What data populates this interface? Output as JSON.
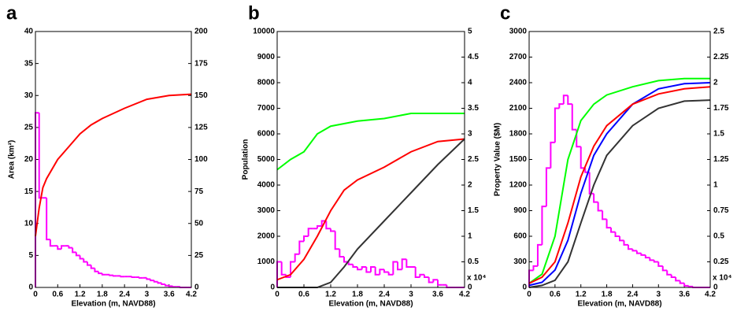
{
  "chart_data": [
    {
      "type": "line",
      "label": "a",
      "xlabel": "Elevation (m, NAVD88)",
      "ylabel": "Area (km²)",
      "xlim": [
        0,
        4.2
      ],
      "xticks": [
        0,
        0.6,
        1.2,
        1.8,
        2.4,
        3,
        3.6,
        4.2
      ],
      "ylim": [
        0,
        40
      ],
      "yticks": [
        0,
        5,
        10,
        15,
        20,
        25,
        30,
        35,
        40
      ],
      "y2lim": [
        0,
        200
      ],
      "y2ticks": [
        0,
        25,
        50,
        75,
        100,
        125,
        150,
        175,
        200
      ],
      "series": [
        {
          "color": "#ff00ff",
          "bins": [
            0,
            0.1,
            0.2,
            0.3,
            0.4,
            0.5,
            0.6,
            0.7,
            0.8,
            0.9,
            1,
            1.1,
            1.2,
            1.3,
            1.4,
            1.5,
            1.6,
            1.7,
            1.8,
            1.9,
            2,
            2.1,
            2.2,
            2.3,
            2.4,
            2.5,
            2.6,
            2.7,
            2.8,
            2.9,
            3,
            3.1,
            3.2,
            3.3,
            3.4,
            3.5,
            3.6,
            3.7,
            3.8,
            3.9,
            4,
            4.1,
            4.2
          ],
          "values": [
            27.3,
            14,
            14,
            7.5,
            6.5,
            6.5,
            6,
            6.5,
            6.5,
            6.2,
            5.5,
            5,
            4.5,
            4,
            3.5,
            3,
            2.5,
            2.2,
            2,
            2,
            1.9,
            1.8,
            1.8,
            1.7,
            1.7,
            1.7,
            1.6,
            1.6,
            1.5,
            1.5,
            1.3,
            1.1,
            0.9,
            0.7,
            0.5,
            0.3,
            0.2,
            0.1,
            0.1,
            0,
            0,
            0
          ]
        },
        {
          "color": "#ff0000",
          "axis": "y2",
          "x": [
            0,
            0.1,
            0.2,
            0.3,
            0.6,
            0.9,
            1.2,
            1.5,
            1.8,
            2.4,
            3,
            3.6,
            4.2
          ],
          "values": [
            40,
            62,
            78,
            85,
            100,
            110,
            120,
            127,
            132,
            140,
            147,
            150,
            151
          ]
        }
      ]
    },
    {
      "type": "line",
      "label": "b",
      "xlabel": "Elevation (m, NAVD88)",
      "ylabel": "Population",
      "y2_multiplier": "x 10⁴",
      "xlim": [
        0,
        4.2
      ],
      "xticks": [
        0,
        0.6,
        1.2,
        1.8,
        2.4,
        3,
        3.6,
        4.2
      ],
      "ylim": [
        0,
        10000
      ],
      "yticks": [
        0,
        1000,
        2000,
        3000,
        4000,
        5000,
        6000,
        7000,
        8000,
        9000,
        10000
      ],
      "y2lim": [
        0,
        5
      ],
      "y2ticks": [
        0,
        0.5,
        1,
        1.5,
        2,
        2.5,
        3,
        3.5,
        4,
        4.5,
        5
      ],
      "series": [
        {
          "color": "#ff00ff",
          "bins": [
            0,
            0.1,
            0.2,
            0.3,
            0.4,
            0.5,
            0.6,
            0.7,
            0.8,
            0.9,
            1,
            1.1,
            1.2,
            1.3,
            1.4,
            1.5,
            1.6,
            1.7,
            1.8,
            1.9,
            2,
            2.1,
            2.2,
            2.3,
            2.4,
            2.5,
            2.6,
            2.7,
            2.8,
            2.9,
            3,
            3.1,
            3.2,
            3.3,
            3.4,
            3.5,
            3.6,
            3.7,
            3.8,
            3.9,
            4,
            4.1,
            4.2
          ],
          "values": [
            1000,
            500,
            400,
            1000,
            1300,
            1800,
            2000,
            2300,
            2300,
            2400,
            2600,
            2300,
            2200,
            1500,
            1200,
            1000,
            900,
            800,
            700,
            800,
            600,
            800,
            500,
            700,
            600,
            500,
            1000,
            700,
            1100,
            800,
            800,
            400,
            500,
            400,
            200,
            300,
            100,
            100,
            0,
            0,
            0,
            0
          ]
        },
        {
          "color": "#00ff00",
          "axis": "y2",
          "x": [
            0,
            0.3,
            0.6,
            0.9,
            1.2,
            1.8,
            2.4,
            3,
            4.2
          ],
          "values": [
            2.3,
            2.5,
            2.65,
            3,
            3.15,
            3.25,
            3.3,
            3.4,
            3.4
          ]
        },
        {
          "color": "#ff0000",
          "axis": "y2",
          "x": [
            0,
            0.3,
            0.6,
            0.9,
            1.2,
            1.5,
            1.8,
            2.4,
            3,
            3.6,
            4.2
          ],
          "values": [
            0.15,
            0.25,
            0.55,
            1,
            1.5,
            1.9,
            2.1,
            2.35,
            2.65,
            2.85,
            2.9
          ]
        },
        {
          "color": "#333333",
          "axis": "y2",
          "x": [
            0,
            0.9,
            1.2,
            1.5,
            1.8,
            2.4,
            3,
            3.6,
            4.2
          ],
          "values": [
            0,
            0,
            0.1,
            0.4,
            0.75,
            1.3,
            1.85,
            2.4,
            2.9
          ]
        }
      ]
    },
    {
      "type": "line",
      "label": "c",
      "xlabel": "Elevation (m, NAVD88)",
      "ylabel": "Property Value ($M)",
      "y2_multiplier": "x 10⁴",
      "xlim": [
        0,
        4.2
      ],
      "xticks": [
        0,
        0.6,
        1.2,
        1.8,
        2.4,
        3,
        3.6,
        4.2
      ],
      "ylim": [
        0,
        3000
      ],
      "yticks": [
        0,
        300,
        600,
        900,
        1200,
        1500,
        1800,
        2100,
        2400,
        2700,
        3000
      ],
      "y2lim": [
        0,
        2.5
      ],
      "y2ticks": [
        0,
        0.25,
        0.5,
        0.75,
        1,
        1.25,
        1.5,
        1.75,
        2,
        2.25,
        2.5
      ],
      "series": [
        {
          "color": "#ff00ff",
          "bins": [
            0,
            0.1,
            0.2,
            0.3,
            0.4,
            0.5,
            0.6,
            0.7,
            0.8,
            0.9,
            1,
            1.1,
            1.2,
            1.3,
            1.4,
            1.5,
            1.6,
            1.7,
            1.8,
            1.9,
            2,
            2.1,
            2.2,
            2.3,
            2.4,
            2.5,
            2.6,
            2.7,
            2.8,
            2.9,
            3,
            3.1,
            3.2,
            3.3,
            3.4,
            3.5,
            3.6,
            3.7,
            3.8,
            3.9,
            4,
            4.1,
            4.2
          ],
          "values": [
            200,
            250,
            500,
            950,
            1400,
            1700,
            2100,
            2150,
            2250,
            2150,
            1850,
            1650,
            1400,
            1350,
            1100,
            1000,
            900,
            800,
            700,
            650,
            600,
            550,
            500,
            450,
            430,
            400,
            380,
            350,
            320,
            300,
            250,
            200,
            150,
            120,
            80,
            50,
            20,
            10,
            0,
            0,
            0,
            0
          ]
        },
        {
          "color": "#00ff00",
          "axis": "y2",
          "x": [
            0,
            0.3,
            0.6,
            0.9,
            1.2,
            1.5,
            1.8,
            2.4,
            3,
            3.6,
            4.2
          ],
          "values": [
            0.04,
            0.13,
            0.5,
            1.25,
            1.63,
            1.79,
            1.88,
            1.96,
            2.02,
            2.04,
            2.04
          ]
        },
        {
          "color": "#0000ff",
          "axis": "y2",
          "x": [
            0,
            0.3,
            0.6,
            0.9,
            1.2,
            1.5,
            1.8,
            2.4,
            3,
            3.6,
            4.2
          ],
          "values": [
            0.02,
            0.05,
            0.17,
            0.46,
            0.92,
            1.29,
            1.5,
            1.79,
            1.94,
            1.99,
            2
          ]
        },
        {
          "color": "#ff0000",
          "axis": "y2",
          "x": [
            0,
            0.3,
            0.6,
            0.9,
            1.2,
            1.5,
            1.8,
            2.4,
            3,
            3.6,
            4.2
          ],
          "values": [
            0.04,
            0.1,
            0.25,
            0.63,
            1.08,
            1.38,
            1.58,
            1.79,
            1.89,
            1.94,
            1.96
          ]
        },
        {
          "color": "#333333",
          "axis": "y2",
          "x": [
            0,
            0.3,
            0.6,
            0.9,
            1.2,
            1.5,
            1.8,
            2.4,
            3,
            3.6,
            4.2
          ],
          "values": [
            0,
            0.02,
            0.07,
            0.25,
            0.63,
            1,
            1.29,
            1.58,
            1.75,
            1.82,
            1.83
          ]
        }
      ]
    }
  ]
}
